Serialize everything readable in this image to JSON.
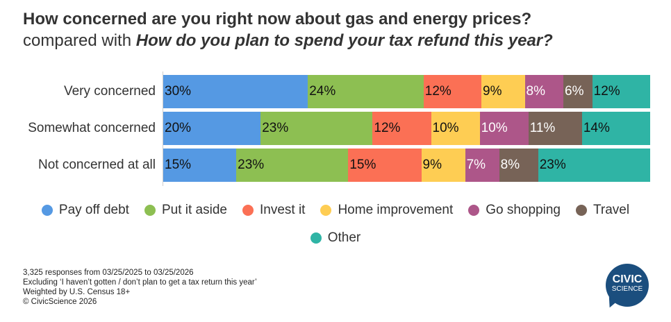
{
  "title": "How concerned are you right now about gas and energy prices?",
  "subtitle_prefix": "compared with ",
  "subtitle_question": "How do you plan to spend your tax refund this year?",
  "chart_data": {
    "type": "bar",
    "stacked": true,
    "orientation": "horizontal",
    "categories": [
      "Very concerned",
      "Somewhat concerned",
      "Not concerned at all"
    ],
    "series": [
      {
        "name": "Pay off debt",
        "color": "#5599e3",
        "label_color": "#111111",
        "values": [
          30,
          20,
          15
        ]
      },
      {
        "name": "Put it aside",
        "color": "#8dbf52",
        "label_color": "#111111",
        "values": [
          24,
          23,
          23
        ]
      },
      {
        "name": "Invest it",
        "color": "#fb7055",
        "label_color": "#111111",
        "values": [
          12,
          12,
          15
        ]
      },
      {
        "name": "Home improvement",
        "color": "#fecd53",
        "label_color": "#111111",
        "values": [
          9,
          10,
          9
        ]
      },
      {
        "name": "Go shopping",
        "color": "#ad5689",
        "label_color": "#ffffff",
        "values": [
          8,
          10,
          7
        ]
      },
      {
        "name": "Travel",
        "color": "#776357",
        "label_color": "#ffffff",
        "values": [
          6,
          11,
          8
        ]
      },
      {
        "name": "Other",
        "color": "#2fb4a5",
        "label_color": "#111111",
        "values": [
          12,
          14,
          23
        ]
      }
    ],
    "value_suffix": "%",
    "legend_position": "bottom"
  },
  "notes": [
    "3,325 responses from 03/25/2025 to 03/25/2026",
    "Excluding ‘I haven’t gotten / don’t plan to get a tax return this year’",
    "Weighted by U.S. Census 18+",
    "© CivicScience 2026"
  ],
  "logo": {
    "line1": "CIVIC",
    "line2": "SCIENCE"
  }
}
